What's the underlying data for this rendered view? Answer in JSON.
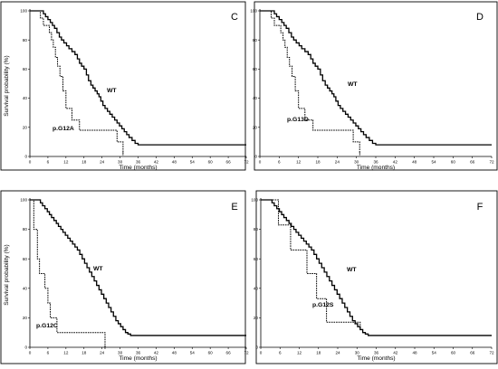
{
  "chart_data": [
    {
      "type": "line",
      "panel": "C",
      "xlabel": "Time (months)",
      "ylabel": "Survival probability (%)",
      "xlim": [
        0,
        72
      ],
      "ylim": [
        0,
        100
      ],
      "x_ticks": [
        "0",
        "6",
        "12",
        "18",
        "24",
        "30",
        "36",
        "42",
        "48",
        "54",
        "60",
        "66",
        "72"
      ],
      "y_ticks": [
        "0",
        "20",
        "40",
        "60",
        "80",
        "100"
      ],
      "series": [
        {
          "name": "WT",
          "style": "solid",
          "points": [
            [
              0,
              100
            ],
            [
              4,
              100
            ],
            [
              4.5,
              98
            ],
            [
              5.2,
              96
            ],
            [
              6,
              94
            ],
            [
              6.8,
              92
            ],
            [
              7.5,
              90
            ],
            [
              8.2,
              88
            ],
            [
              9,
              85
            ],
            [
              9.8,
              82
            ],
            [
              10.5,
              80
            ],
            [
              11.3,
              78
            ],
            [
              12.2,
              76
            ],
            [
              13,
              74
            ],
            [
              14,
              72
            ],
            [
              15,
              70
            ],
            [
              15.8,
              67
            ],
            [
              16.5,
              64
            ],
            [
              17.2,
              62
            ],
            [
              18,
              60
            ],
            [
              18.8,
              56
            ],
            [
              19.5,
              52
            ],
            [
              20.3,
              49
            ],
            [
              21,
              47
            ],
            [
              21.7,
              45
            ],
            [
              22.4,
              43
            ],
            [
              23,
              41
            ],
            [
              23.6,
              38
            ],
            [
              24.3,
              35
            ],
            [
              25,
              33
            ],
            [
              25.8,
              31
            ],
            [
              26.6,
              29
            ],
            [
              27.4,
              27
            ],
            [
              28.2,
              25
            ],
            [
              29,
              23
            ],
            [
              29.8,
              21
            ],
            [
              30.6,
              19
            ],
            [
              31.4,
              17
            ],
            [
              32.2,
              15
            ],
            [
              33,
              13
            ],
            [
              34,
              11
            ],
            [
              35,
              9
            ],
            [
              36,
              8
            ],
            [
              72,
              8
            ]
          ]
        },
        {
          "name": "p.G12A",
          "style": "dashed",
          "points": [
            [
              0,
              100
            ],
            [
              3,
              100
            ],
            [
              3.5,
              95
            ],
            [
              4.5,
              90
            ],
            [
              6.5,
              85
            ],
            [
              7.2,
              80
            ],
            [
              7.8,
              75
            ],
            [
              8.5,
              68
            ],
            [
              9.2,
              62
            ],
            [
              10,
              55
            ],
            [
              11,
              45
            ],
            [
              12,
              33
            ],
            [
              14,
              25
            ],
            [
              16.5,
              18
            ],
            [
              29,
              10
            ],
            [
              31,
              2
            ]
          ]
        }
      ]
    },
    {
      "type": "line",
      "panel": "D",
      "xlabel": "Time (months)",
      "ylabel": "",
      "xlim": [
        0,
        72
      ],
      "ylim": [
        0,
        100
      ],
      "x_ticks": [
        "0",
        "6",
        "12",
        "18",
        "24",
        "30",
        "36",
        "42",
        "48",
        "54",
        "60",
        "66",
        "72"
      ],
      "y_ticks": [
        "0",
        "20",
        "40",
        "60",
        "80",
        "100"
      ],
      "series": [
        {
          "name": "WT",
          "style": "solid",
          "points": [
            [
              0,
              100
            ],
            [
              4,
              100
            ],
            [
              4.5,
              98
            ],
            [
              5.2,
              96
            ],
            [
              6,
              94
            ],
            [
              6.8,
              92
            ],
            [
              7.5,
              90
            ],
            [
              8.2,
              88
            ],
            [
              9,
              85
            ],
            [
              9.8,
              82
            ],
            [
              10.5,
              80
            ],
            [
              11.3,
              78
            ],
            [
              12.2,
              76
            ],
            [
              13,
              74
            ],
            [
              14,
              72
            ],
            [
              15,
              70
            ],
            [
              15.8,
              67
            ],
            [
              16.5,
              64
            ],
            [
              17.2,
              62
            ],
            [
              18,
              60
            ],
            [
              18.8,
              56
            ],
            [
              19.5,
              52
            ],
            [
              20.3,
              49
            ],
            [
              21,
              47
            ],
            [
              21.7,
              45
            ],
            [
              22.4,
              43
            ],
            [
              23,
              41
            ],
            [
              23.6,
              38
            ],
            [
              24.3,
              35
            ],
            [
              25,
              33
            ],
            [
              25.8,
              31
            ],
            [
              26.6,
              29
            ],
            [
              27.4,
              27
            ],
            [
              28.2,
              25
            ],
            [
              29,
              23
            ],
            [
              29.8,
              21
            ],
            [
              30.6,
              19
            ],
            [
              31.4,
              17
            ],
            [
              32.2,
              15
            ],
            [
              33,
              13
            ],
            [
              34,
              11
            ],
            [
              35,
              9
            ],
            [
              36,
              8
            ],
            [
              72,
              8
            ]
          ]
        },
        {
          "name": "p.G13D",
          "style": "dashed",
          "points": [
            [
              0,
              100
            ],
            [
              3,
              100
            ],
            [
              3.5,
              95
            ],
            [
              4.5,
              90
            ],
            [
              6.5,
              85
            ],
            [
              7.2,
              80
            ],
            [
              7.8,
              75
            ],
            [
              8.5,
              68
            ],
            [
              9.2,
              62
            ],
            [
              10,
              55
            ],
            [
              11,
              45
            ],
            [
              12,
              33
            ],
            [
              14,
              25
            ],
            [
              16.5,
              18
            ],
            [
              29,
              10
            ],
            [
              31,
              2
            ]
          ]
        }
      ]
    },
    {
      "type": "line",
      "panel": "E",
      "xlabel": "Time (months)",
      "ylabel": "Survival probability (%)",
      "xlim": [
        0,
        72
      ],
      "ylim": [
        0,
        100
      ],
      "x_ticks": [
        "0",
        "6",
        "12",
        "18",
        "24",
        "30",
        "36",
        "42",
        "48",
        "54",
        "60",
        "66",
        "72"
      ],
      "y_ticks": [
        "0",
        "20",
        "40",
        "60",
        "80",
        "100"
      ],
      "series": [
        {
          "name": "WT",
          "style": "solid",
          "points": [
            [
              0,
              100
            ],
            [
              3,
              100
            ],
            [
              3.5,
              98
            ],
            [
              4.2,
              96
            ],
            [
              5,
              94
            ],
            [
              5.8,
              92
            ],
            [
              6.5,
              90
            ],
            [
              7.2,
              88
            ],
            [
              8,
              86
            ],
            [
              8.8,
              84
            ],
            [
              9.5,
              82
            ],
            [
              10.3,
              80
            ],
            [
              11,
              78
            ],
            [
              11.8,
              76
            ],
            [
              12.6,
              74
            ],
            [
              13.4,
              72
            ],
            [
              14.2,
              70
            ],
            [
              15,
              68
            ],
            [
              15.8,
              66
            ],
            [
              16.6,
              63
            ],
            [
              17.4,
              60
            ],
            [
              18.2,
              57
            ],
            [
              19,
              54
            ],
            [
              19.8,
              51
            ],
            [
              20.6,
              48
            ],
            [
              21.4,
              45
            ],
            [
              22.2,
              42
            ],
            [
              23,
              39
            ],
            [
              23.8,
              36
            ],
            [
              24.6,
              33
            ],
            [
              25.4,
              30
            ],
            [
              26.2,
              27
            ],
            [
              27,
              24
            ],
            [
              27.8,
              21
            ],
            [
              28.6,
              18
            ],
            [
              29.4,
              16
            ],
            [
              30.2,
              14
            ],
            [
              31,
              12
            ],
            [
              31.8,
              10
            ],
            [
              32.6,
              9
            ],
            [
              33.5,
              8
            ],
            [
              72,
              8
            ]
          ]
        },
        {
          "name": "p.G12C",
          "style": "dashed",
          "points": [
            [
              0,
              100
            ],
            [
              1,
              100
            ],
            [
              1.3,
              80
            ],
            [
              2.5,
              60
            ],
            [
              3.2,
              50
            ],
            [
              5,
              40
            ],
            [
              6,
              30
            ],
            [
              6.8,
              20
            ],
            [
              9,
              10
            ],
            [
              25,
              0
            ]
          ]
        }
      ]
    },
    {
      "type": "line",
      "panel": "F",
      "xlabel": "Time (months)",
      "ylabel": "",
      "xlim": [
        0,
        72
      ],
      "ylim": [
        0,
        100
      ],
      "x_ticks": [
        "0",
        "6",
        "12",
        "18",
        "24",
        "30",
        "36",
        "42",
        "48",
        "54",
        "60",
        "66",
        "72"
      ],
      "y_ticks": [
        "0",
        "20",
        "40",
        "60",
        "80",
        "100"
      ],
      "series": [
        {
          "name": "WT",
          "style": "solid",
          "points": [
            [
              0,
              100
            ],
            [
              3,
              100
            ],
            [
              3.5,
              98
            ],
            [
              4.2,
              96
            ],
            [
              5,
              94
            ],
            [
              5.8,
              92
            ],
            [
              6.5,
              90
            ],
            [
              7.2,
              88
            ],
            [
              8,
              86
            ],
            [
              8.8,
              84
            ],
            [
              9.5,
              82
            ],
            [
              10.3,
              80
            ],
            [
              11,
              78
            ],
            [
              11.8,
              76
            ],
            [
              12.6,
              74
            ],
            [
              13.4,
              72
            ],
            [
              14.2,
              70
            ],
            [
              15,
              68
            ],
            [
              15.8,
              66
            ],
            [
              16.6,
              63
            ],
            [
              17.4,
              60
            ],
            [
              18.2,
              57
            ],
            [
              19,
              54
            ],
            [
              19.8,
              51
            ],
            [
              20.6,
              48
            ],
            [
              21.4,
              45
            ],
            [
              22.2,
              42
            ],
            [
              23,
              39
            ],
            [
              23.8,
              36
            ],
            [
              24.6,
              33
            ],
            [
              25.4,
              30
            ],
            [
              26.2,
              27
            ],
            [
              27,
              24
            ],
            [
              27.8,
              21
            ],
            [
              28.6,
              18
            ],
            [
              29.4,
              16
            ],
            [
              30.2,
              14
            ],
            [
              31,
              12
            ],
            [
              31.8,
              10
            ],
            [
              32.6,
              9
            ],
            [
              33.5,
              8
            ],
            [
              72,
              8
            ]
          ]
        },
        {
          "name": "p.G12S",
          "style": "dashed",
          "points": [
            [
              0,
              100
            ],
            [
              5,
              100
            ],
            [
              5.5,
              83
            ],
            [
              9,
              83
            ],
            [
              9.3,
              66
            ],
            [
              14,
              66
            ],
            [
              14.4,
              50
            ],
            [
              17,
              50
            ],
            [
              17.4,
              33
            ],
            [
              20,
              33
            ],
            [
              20.5,
              17
            ],
            [
              30,
              17
            ],
            [
              31,
              13
            ]
          ]
        }
      ]
    }
  ]
}
